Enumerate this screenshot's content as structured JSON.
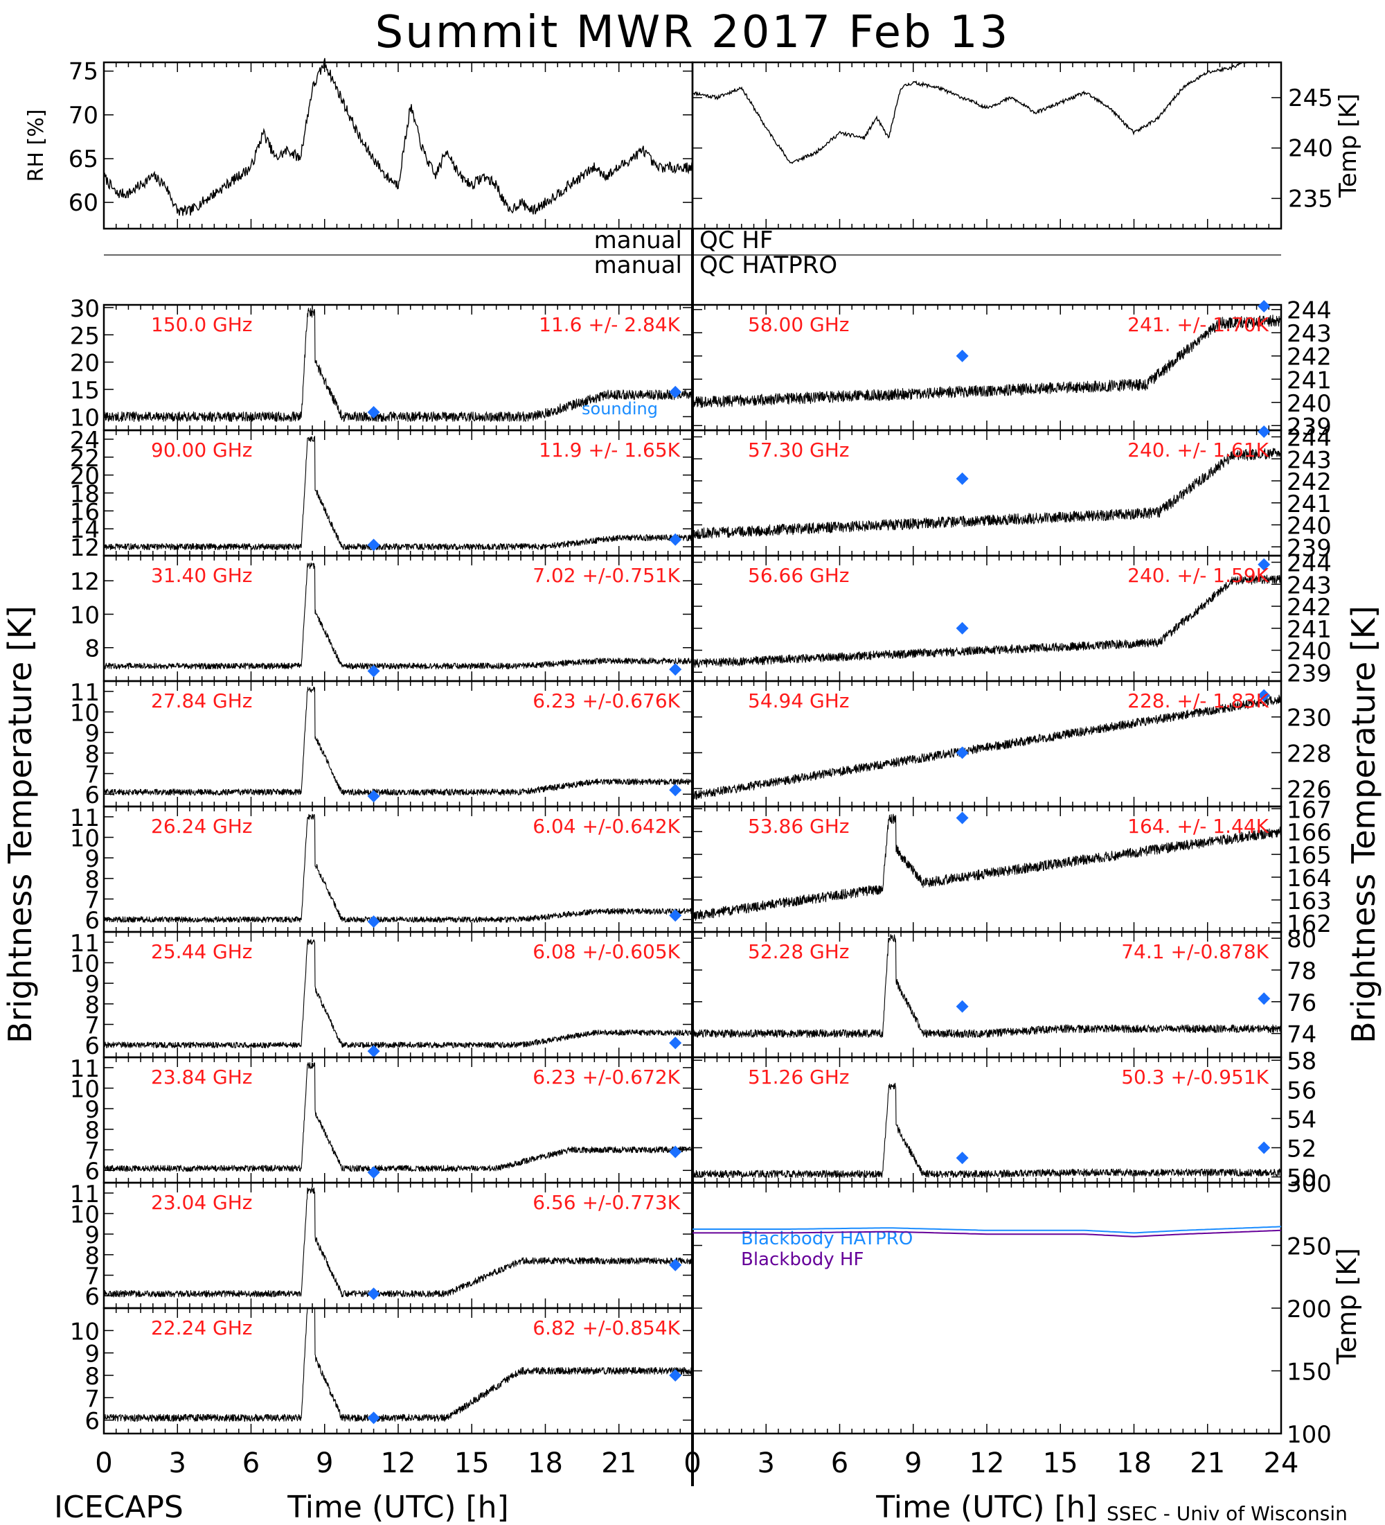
{
  "title": "Summit MWR 2017 Feb 13",
  "footer_left": "ICECAPS",
  "footer_right": "SSEC - Univ of Wisconsin",
  "colors": {
    "label_red": "#ff1a1a",
    "diamond_blue": "#1a6fff",
    "hatpro_blue": "#1a8cff",
    "hf_purple": "#660099",
    "trace_black": "#000000"
  },
  "chart_data": [
    {
      "id": "rh",
      "type": "line",
      "ylabel": "RH [%]",
      "ylim": [
        57,
        76
      ],
      "yticks": [
        60,
        65,
        70,
        75
      ],
      "xlim": [
        0,
        24
      ],
      "x": [
        0,
        0.5,
        1,
        1.5,
        2,
        2.5,
        3,
        3.5,
        4,
        4.5,
        5,
        5.5,
        6,
        6.5,
        7,
        7.5,
        8,
        8.5,
        9,
        9.5,
        10,
        10.5,
        11,
        11.5,
        12,
        12.5,
        13,
        13.5,
        14,
        14.5,
        15,
        15.5,
        16,
        16.5,
        17,
        17.5,
        18,
        18.5,
        19,
        19.5,
        20,
        20.5,
        21,
        21.5,
        22,
        22.5,
        23,
        23.5,
        24
      ],
      "y": [
        63,
        61,
        61,
        62,
        63,
        62,
        59,
        59,
        60,
        61,
        62,
        63,
        64,
        68,
        65,
        66,
        65,
        73,
        76,
        73,
        70,
        67,
        65,
        63,
        62,
        71,
        66,
        63,
        66,
        63,
        62,
        63,
        62,
        59,
        60,
        59,
        60,
        61,
        62,
        63,
        64,
        63,
        64,
        65,
        66,
        64,
        64,
        64,
        64
      ]
    },
    {
      "id": "temp",
      "type": "line",
      "ylabel": "Temp [K]",
      "ylim": [
        232,
        248.5
      ],
      "yticks": [
        235,
        240,
        245
      ],
      "xlim": [
        0,
        24
      ],
      "x": [
        0,
        1,
        2,
        3,
        4,
        4.5,
        5,
        6,
        7,
        7.5,
        8,
        8.5,
        9,
        10,
        11,
        12,
        13,
        14,
        15,
        16,
        17,
        18,
        19,
        20,
        21,
        22,
        23,
        24
      ],
      "y": [
        245.5,
        245,
        246,
        242,
        238.5,
        239,
        239.5,
        241.5,
        241,
        243,
        241,
        246,
        246.5,
        246,
        245,
        244,
        245,
        243.5,
        244.5,
        245.5,
        244,
        241.5,
        243,
        246,
        247.5,
        248,
        249,
        249
      ]
    },
    {
      "type": "table",
      "rows": [
        {
          "left": "manual",
          "right": "QC HF"
        },
        {
          "left": "manual",
          "right": "QC HATPRO"
        }
      ]
    },
    {
      "type": "line",
      "common_xlabel": "Time (UTC) [h]",
      "common_ylabel": "Brightness Temperature [K]",
      "xticks": [
        0,
        3,
        6,
        9,
        12,
        15,
        18,
        21,
        24
      ],
      "xlim": [
        0,
        24
      ],
      "sounding_times": [
        11,
        23.3
      ],
      "panels": [
        {
          "side": "left",
          "freq": "150.0 GHz",
          "stat": "11.6 +/-  2.84K",
          "ylim": [
            7.5,
            30.5
          ],
          "yticks": [
            10,
            15,
            20,
            25,
            30
          ],
          "base": 10,
          "spike": 19,
          "late": 14,
          "late_start": 17.5,
          "drift": 0,
          "noise": 0.9,
          "spike_t": 8.3,
          "sounding": [
            10.8,
            14.5
          ],
          "note": "sounding"
        },
        {
          "side": "left",
          "freq": "90.00 GHz",
          "stat": "11.9 +/-  1.65K",
          "ylim": [
            11,
            25
          ],
          "yticks": [
            12,
            14,
            16,
            18,
            20,
            22,
            24
          ],
          "base": 12,
          "spike": 12,
          "late": 13,
          "late_start": 18,
          "drift": 0,
          "noise": 0.35,
          "spike_t": 8.3,
          "sounding": [
            12.2,
            12.8
          ]
        },
        {
          "side": "left",
          "freq": "31.40 GHz",
          "stat": "7.02 +/-0.751K",
          "ylim": [
            6,
            13.5
          ],
          "yticks": [
            8,
            10,
            12
          ],
          "base": 6.9,
          "spike": 6,
          "late": 7.2,
          "late_start": 17,
          "drift": 0,
          "noise": 0.18,
          "spike_t": 8.3,
          "sounding": [
            6.6,
            6.7
          ]
        },
        {
          "side": "left",
          "freq": "27.84 GHz",
          "stat": "6.23 +/-0.676K",
          "ylim": [
            5.4,
            11.5
          ],
          "yticks": [
            6,
            7,
            8,
            9,
            10,
            11
          ],
          "base": 6.1,
          "spike": 5,
          "late": 6.6,
          "late_start": 17,
          "drift": 0,
          "noise": 0.15,
          "spike_t": 8.3,
          "sounding": [
            5.9,
            6.2
          ]
        },
        {
          "side": "left",
          "freq": "26.24 GHz",
          "stat": "6.04 +/-0.642K",
          "ylim": [
            5.4,
            11.5
          ],
          "yticks": [
            6,
            7,
            8,
            9,
            10,
            11
          ],
          "base": 6.0,
          "spike": 5,
          "late": 6.4,
          "late_start": 17,
          "drift": 0,
          "noise": 0.14,
          "spike_t": 8.3,
          "sounding": [
            5.9,
            6.2
          ]
        },
        {
          "side": "left",
          "freq": "25.44 GHz",
          "stat": "6.08 +/-0.605K",
          "ylim": [
            5.4,
            11.5
          ],
          "yticks": [
            6,
            7,
            8,
            9,
            10,
            11
          ],
          "base": 6.0,
          "spike": 5,
          "late": 6.6,
          "late_start": 17,
          "drift": 0,
          "noise": 0.14,
          "spike_t": 8.3,
          "sounding": [
            5.7,
            6.1
          ]
        },
        {
          "side": "left",
          "freq": "23.84 GHz",
          "stat": "6.23 +/-0.672K",
          "ylim": [
            5.4,
            11.5
          ],
          "yticks": [
            6,
            7,
            8,
            9,
            10,
            11
          ],
          "base": 6.1,
          "spike": 5,
          "late": 7.0,
          "late_start": 16,
          "drift": 0,
          "noise": 0.15,
          "spike_t": 8.3,
          "sounding": [
            5.9,
            6.9
          ]
        },
        {
          "side": "left",
          "freq": "23.04 GHz",
          "stat": "6.56 +/-0.773K",
          "ylim": [
            5.4,
            11.5
          ],
          "yticks": [
            6,
            7,
            8,
            9,
            10,
            11
          ],
          "base": 6.1,
          "spike": 5,
          "late": 7.7,
          "late_start": 14,
          "drift": 0,
          "noise": 0.16,
          "spike_t": 8.3,
          "sounding": [
            6.1,
            7.5
          ]
        },
        {
          "side": "left",
          "freq": "22.24 GHz",
          "stat": "6.82 +/-0.854K",
          "ylim": [
            5.4,
            11
          ],
          "yticks": [
            6,
            7,
            8,
            9,
            10
          ],
          "base": 6.1,
          "spike": 5,
          "late": 8.2,
          "late_start": 14,
          "drift": 0,
          "noise": 0.16,
          "spike_t": 8.3,
          "sounding": [
            6.1,
            8.0
          ]
        },
        {
          "side": "right",
          "freq": "58.00 GHz",
          "stat": "241. +/- 1.70K",
          "ylim": [
            238.8,
            244.2
          ],
          "yticks": [
            239,
            240,
            241,
            242,
            243,
            244
          ],
          "base": 240.0,
          "spike": 0,
          "late": 243.3,
          "late_start": 18.5,
          "drift": 1.0,
          "noise": 0.25,
          "spike_t": 8.3,
          "sounding": [
            242.0,
            244.3
          ]
        },
        {
          "side": "right",
          "freq": "57.30 GHz",
          "stat": "240. +/- 1.61K",
          "ylim": [
            238.6,
            244.3
          ],
          "yticks": [
            239,
            240,
            241,
            242,
            243,
            244
          ],
          "base": 239.6,
          "spike": 0,
          "late": 243.0,
          "late_start": 19,
          "drift": 1.2,
          "noise": 0.25,
          "spike_t": 8.3,
          "sounding": [
            242.1,
            244.4
          ]
        },
        {
          "side": "right",
          "freq": "56.66 GHz",
          "stat": "240. +/- 1.59K",
          "ylim": [
            238.6,
            244.3
          ],
          "yticks": [
            239,
            240,
            241,
            242,
            243,
            244
          ],
          "base": 239.4,
          "spike": 0,
          "late": 243.0,
          "late_start": 19,
          "drift": 1.2,
          "noise": 0.2,
          "spike_t": 8.3,
          "sounding": [
            241.0,
            243.9
          ]
        },
        {
          "side": "right",
          "freq": "54.94 GHz",
          "stat": "228. +/- 1.83K",
          "ylim": [
            225,
            232
          ],
          "yticks": [
            226,
            228,
            230
          ],
          "base": 225.6,
          "spike": 0,
          "late": 231.0,
          "late_start": 24,
          "drift": 5.4,
          "noise": 0.25,
          "spike_t": 8.3,
          "sounding": [
            228.0,
            231.2
          ]
        },
        {
          "side": "right",
          "freq": "53.86 GHz",
          "stat": "164. +/- 1.44K",
          "ylim": [
            161.6,
            167.1
          ],
          "yticks": [
            162,
            163,
            164,
            165,
            166,
            167
          ],
          "base": 162.3,
          "spike": 3,
          "late": 166.0,
          "late_start": 24,
          "drift": 3.7,
          "noise": 0.22,
          "spike_t": 8.0,
          "sounding": [
            166.6
          ]
        },
        {
          "side": "right",
          "freq": "52.28 GHz",
          "stat": "74.1 +/-0.878K",
          "ylim": [
            72.5,
            80.4
          ],
          "yticks": [
            74,
            76,
            78,
            80
          ],
          "base": 74.0,
          "spike": 6,
          "late": 74.3,
          "late_start": 12,
          "drift": 0,
          "noise": 0.25,
          "spike_t": 8.0,
          "sounding": [
            75.7,
            76.2
          ]
        },
        {
          "side": "right",
          "freq": "51.26 GHz",
          "stat": "50.3 +/-0.951K",
          "ylim": [
            49.6,
            58.2
          ],
          "yticks": [
            50,
            52,
            54,
            56,
            58
          ],
          "base": 50.2,
          "spike": 6,
          "late": 50.3,
          "late_start": 12,
          "drift": 0,
          "noise": 0.25,
          "spike_t": 8.0,
          "sounding": [
            51.3,
            52.0
          ]
        }
      ]
    },
    {
      "id": "blackbody",
      "type": "line",
      "ylabel": "Temp [K]",
      "ylim": [
        100,
        300
      ],
      "yticks": [
        100,
        150,
        200,
        250,
        300
      ],
      "xlim": [
        0,
        24
      ],
      "series": [
        {
          "name": "Blackbody HATPRO",
          "x": [
            0,
            4,
            8,
            12,
            16,
            18,
            20,
            24
          ],
          "y": [
            263,
            263,
            264,
            262,
            262,
            260,
            262,
            265
          ]
        },
        {
          "name": "Blackbody HF",
          "x": [
            0,
            4,
            8,
            12,
            16,
            18,
            20,
            24
          ],
          "y": [
            260,
            260,
            261,
            259,
            259,
            257,
            259,
            262
          ]
        }
      ]
    }
  ]
}
